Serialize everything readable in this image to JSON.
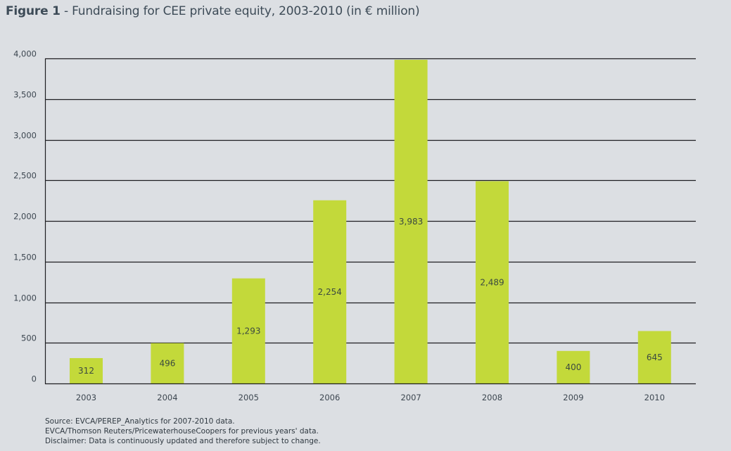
{
  "title": {
    "prefix": "Figure 1",
    "text": " - Fundraising for CEE private equity, 2003-2010 (in € million)"
  },
  "colors": {
    "bar": "#c3d93a",
    "grid": "#1e1e22",
    "background": "#dcdfe3"
  },
  "chart_data": {
    "type": "bar",
    "title": "Figure 1 - Fundraising for CEE private equity, 2003-2010 (in € million)",
    "xlabel": "",
    "ylabel": "€ million",
    "categories": [
      "2003",
      "2004",
      "2005",
      "2006",
      "2007",
      "2008",
      "2009",
      "2010"
    ],
    "values": [
      312,
      496,
      1293,
      2254,
      3983,
      2489,
      400,
      645
    ],
    "value_labels": [
      "312",
      "496",
      "1,293",
      "2,254",
      "3,983",
      "2,489",
      "400",
      "645"
    ],
    "ylim": [
      0,
      4000
    ],
    "yticks": [
      0,
      500,
      1000,
      1500,
      2000,
      2500,
      3000,
      3500,
      4000
    ],
    "ytick_labels": [
      "0",
      "500",
      "1,000",
      "1,500",
      "2,000",
      "2,500",
      "3,000",
      "3,500",
      "4,000"
    ],
    "grid": true,
    "legend": "none"
  },
  "source": {
    "lines": [
      "Source: EVCA/PEREP_Analytics for 2007-2010 data.",
      "EVCA/Thomson Reuters/PricewaterhouseCoopers for previous years' data.",
      "Disclaimer: Data is continuously updated and therefore subject to change."
    ]
  }
}
